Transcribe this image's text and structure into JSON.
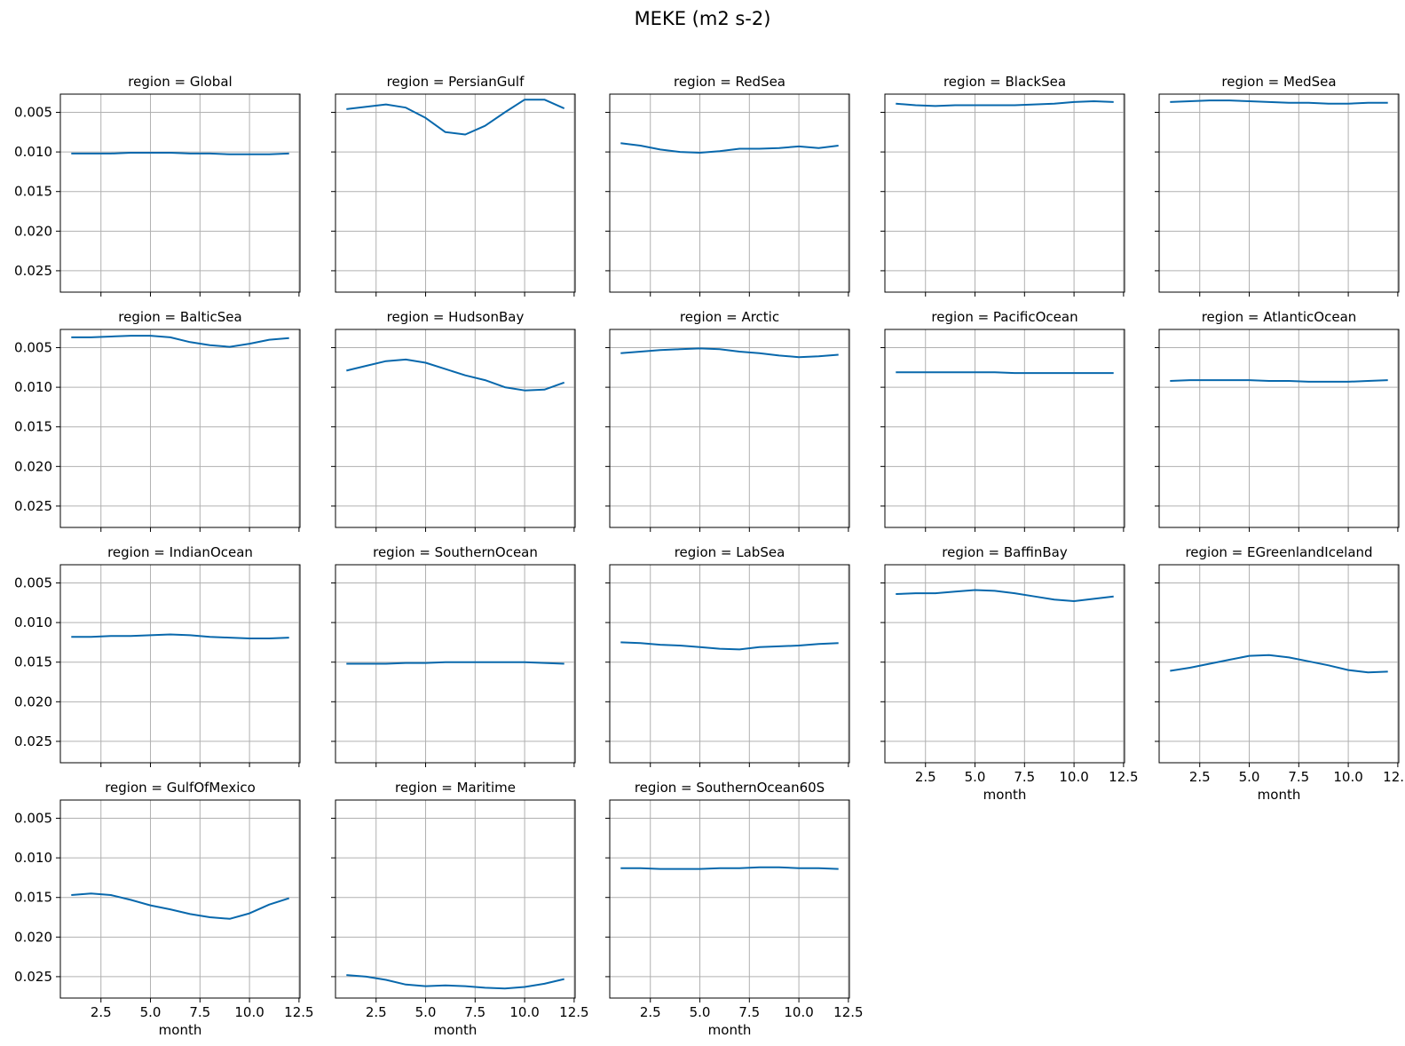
{
  "figure": {
    "title": "MEKE (m2 s-2)"
  },
  "chart_data": {
    "type": "line",
    "title": "MEKE (m2 s-2)",
    "xlabel": "month",
    "ylabel": "",
    "y_inverted": true,
    "xlim": [
      0.45,
      12.55
    ],
    "ylim": [
      0.0027,
      0.0277
    ],
    "xticks": [
      2.5,
      5.0,
      7.5,
      10.0,
      12.5
    ],
    "xtick_labels": [
      "2.5",
      "5.0",
      "7.5",
      "10.0",
      "12.5"
    ],
    "yticks": [
      0.005,
      0.01,
      0.015,
      0.02,
      0.025
    ],
    "ytick_labels": [
      "0.005",
      "0.010",
      "0.015",
      "0.020",
      "0.025"
    ],
    "grid": true,
    "line_color": "#0868ac",
    "x": [
      1,
      2,
      3,
      4,
      5,
      6,
      7,
      8,
      9,
      10,
      11,
      12
    ],
    "panels": [
      {
        "title": "region = Global",
        "values": [
          0.0102,
          0.0102,
          0.0102,
          0.0101,
          0.0101,
          0.0101,
          0.0102,
          0.0102,
          0.0103,
          0.0103,
          0.0103,
          0.0102
        ]
      },
      {
        "title": "region = PersianGulf",
        "values": [
          0.0046,
          0.0043,
          0.004,
          0.0044,
          0.0057,
          0.0075,
          0.0078,
          0.0067,
          0.005,
          0.0034,
          0.0034,
          0.0045
        ]
      },
      {
        "title": "region = RedSea",
        "values": [
          0.0089,
          0.0092,
          0.0097,
          0.01,
          0.0101,
          0.0099,
          0.0096,
          0.0096,
          0.0095,
          0.0093,
          0.0095,
          0.0092
        ]
      },
      {
        "title": "region = BlackSea",
        "values": [
          0.0039,
          0.0041,
          0.0042,
          0.0041,
          0.0041,
          0.0041,
          0.0041,
          0.004,
          0.0039,
          0.0037,
          0.0036,
          0.0037
        ]
      },
      {
        "title": "region = MedSea",
        "values": [
          0.0037,
          0.0036,
          0.0035,
          0.0035,
          0.0036,
          0.0037,
          0.0038,
          0.0038,
          0.0039,
          0.0039,
          0.0038,
          0.0038
        ]
      },
      {
        "title": "region = BalticSea",
        "values": [
          0.0037,
          0.0037,
          0.0036,
          0.0035,
          0.0035,
          0.0037,
          0.0043,
          0.0047,
          0.0049,
          0.0045,
          0.004,
          0.0038
        ]
      },
      {
        "title": "region = HudsonBay",
        "values": [
          0.0079,
          0.0073,
          0.0067,
          0.0065,
          0.0069,
          0.0077,
          0.0085,
          0.0091,
          0.01,
          0.0104,
          0.0103,
          0.0094
        ]
      },
      {
        "title": "region = Arctic",
        "values": [
          0.0057,
          0.0055,
          0.0053,
          0.0052,
          0.0051,
          0.0052,
          0.0055,
          0.0057,
          0.006,
          0.0062,
          0.0061,
          0.0059
        ]
      },
      {
        "title": "region = PacificOcean",
        "values": [
          0.0081,
          0.0081,
          0.0081,
          0.0081,
          0.0081,
          0.0081,
          0.0082,
          0.0082,
          0.0082,
          0.0082,
          0.0082,
          0.0082
        ]
      },
      {
        "title": "region = AtlanticOcean",
        "values": [
          0.0092,
          0.0091,
          0.0091,
          0.0091,
          0.0091,
          0.0092,
          0.0092,
          0.0093,
          0.0093,
          0.0093,
          0.0092,
          0.0091
        ]
      },
      {
        "title": "region = IndianOcean",
        "values": [
          0.0118,
          0.0118,
          0.0117,
          0.0117,
          0.0116,
          0.0115,
          0.0116,
          0.0118,
          0.0119,
          0.012,
          0.012,
          0.0119
        ]
      },
      {
        "title": "region = SouthernOcean",
        "values": [
          0.0152,
          0.0152,
          0.0152,
          0.0151,
          0.0151,
          0.015,
          0.015,
          0.015,
          0.015,
          0.015,
          0.0151,
          0.0152
        ]
      },
      {
        "title": "region = LabSea",
        "values": [
          0.0125,
          0.0126,
          0.0128,
          0.0129,
          0.0131,
          0.0133,
          0.0134,
          0.0131,
          0.013,
          0.0129,
          0.0127,
          0.0126
        ]
      },
      {
        "title": "region = BaffinBay",
        "values": [
          0.0064,
          0.0063,
          0.0063,
          0.0061,
          0.0059,
          0.006,
          0.0063,
          0.0067,
          0.0071,
          0.0073,
          0.007,
          0.0067
        ]
      },
      {
        "title": "region = EGreenlandIceland",
        "values": [
          0.0161,
          0.0157,
          0.0152,
          0.0147,
          0.0142,
          0.0141,
          0.0144,
          0.0149,
          0.0154,
          0.016,
          0.0163,
          0.0162
        ]
      },
      {
        "title": "region = GulfOfMexico",
        "values": [
          0.0147,
          0.0145,
          0.0147,
          0.0153,
          0.016,
          0.0165,
          0.0171,
          0.0175,
          0.0177,
          0.017,
          0.0159,
          0.0151
        ]
      },
      {
        "title": "region = Maritime",
        "values": [
          0.0248,
          0.025,
          0.0254,
          0.026,
          0.0262,
          0.0261,
          0.0262,
          0.0264,
          0.0265,
          0.0263,
          0.0259,
          0.0253
        ]
      },
      {
        "title": "region = SouthernOcean60S",
        "values": [
          0.0113,
          0.0113,
          0.0114,
          0.0114,
          0.0114,
          0.0113,
          0.0113,
          0.0112,
          0.0112,
          0.0113,
          0.0113,
          0.0114
        ]
      }
    ]
  }
}
